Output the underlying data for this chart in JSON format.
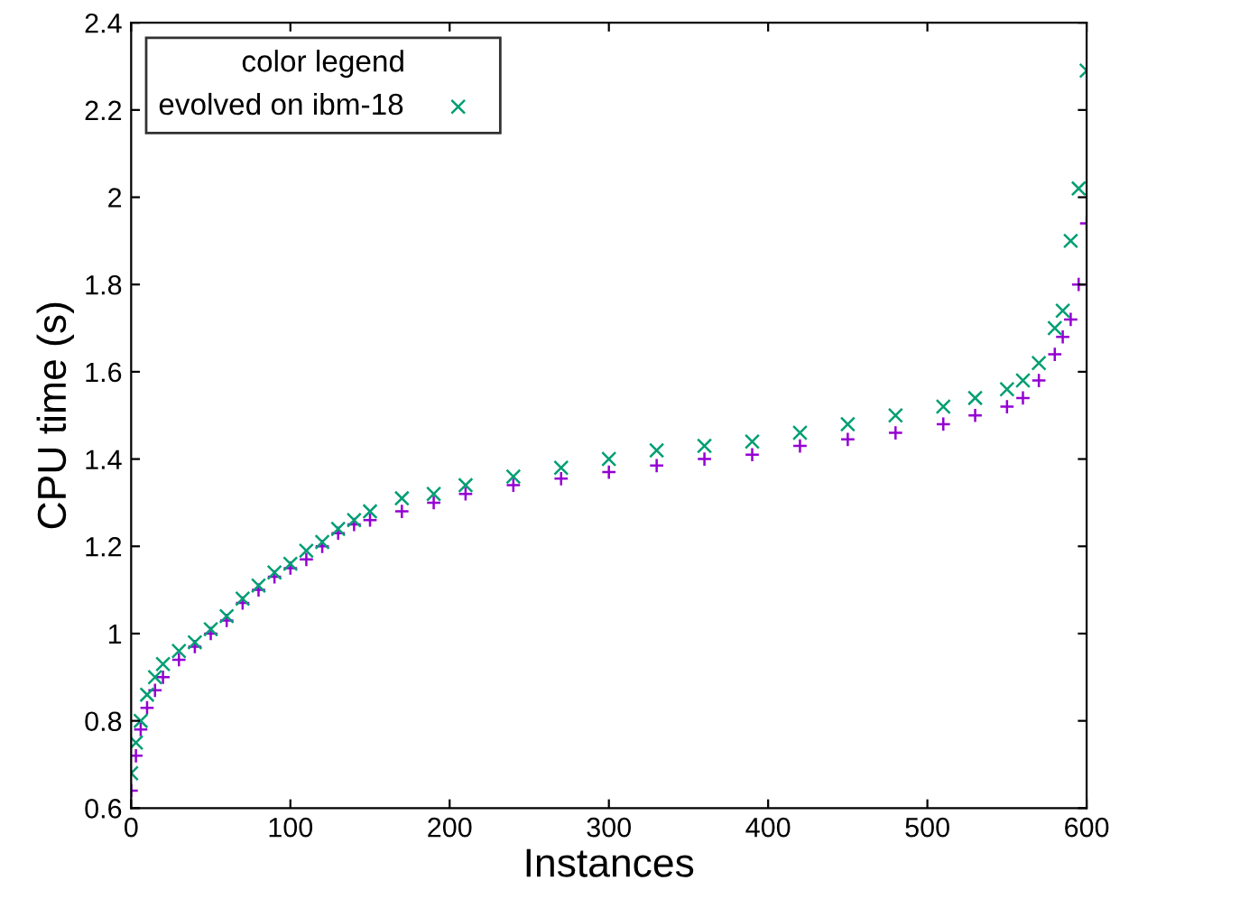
{
  "chart_data": {
    "type": "scatter",
    "xlabel": "Instances",
    "ylabel": "CPU time (s)",
    "legend_title": "color legend",
    "legend": "top left",
    "grid": false,
    "xlim": [
      0,
      600
    ],
    "xticks": [
      0,
      100,
      200,
      300,
      400,
      500,
      600
    ],
    "ylim": [
      0.6,
      2.4
    ],
    "yticks": [
      0.6,
      0.8,
      1,
      1.2,
      1.4,
      1.6,
      1.8,
      2,
      2.2,
      2.4
    ],
    "x": [
      0,
      3,
      6,
      10,
      15,
      20,
      30,
      40,
      50,
      60,
      70,
      80,
      90,
      100,
      110,
      120,
      130,
      140,
      150,
      170,
      190,
      210,
      240,
      270,
      300,
      330,
      360,
      390,
      420,
      450,
      480,
      510,
      530,
      550,
      560,
      570,
      580,
      585,
      590,
      595,
      600
    ],
    "series": [
      {
        "color": "#9400d3",
        "marker": "plus",
        "values": [
          0.64,
          0.72,
          0.78,
          0.83,
          0.87,
          0.9,
          0.94,
          0.97,
          1.0,
          1.03,
          1.07,
          1.1,
          1.13,
          1.15,
          1.17,
          1.2,
          1.23,
          1.25,
          1.26,
          1.28,
          1.3,
          1.32,
          1.34,
          1.355,
          1.37,
          1.385,
          1.4,
          1.41,
          1.43,
          1.445,
          1.46,
          1.48,
          1.5,
          1.52,
          1.54,
          1.58,
          1.64,
          1.68,
          1.72,
          1.8,
          1.94
        ]
      },
      {
        "name": "evolved on ibm-18",
        "color": "#009e73",
        "marker": "cross",
        "values": [
          0.68,
          0.75,
          0.8,
          0.86,
          0.9,
          0.93,
          0.96,
          0.98,
          1.01,
          1.04,
          1.08,
          1.11,
          1.14,
          1.16,
          1.19,
          1.21,
          1.24,
          1.26,
          1.28,
          1.31,
          1.32,
          1.34,
          1.36,
          1.38,
          1.4,
          1.42,
          1.43,
          1.44,
          1.46,
          1.48,
          1.5,
          1.52,
          1.54,
          1.56,
          1.58,
          1.62,
          1.7,
          1.74,
          1.9,
          2.02,
          2.29
        ]
      }
    ]
  }
}
